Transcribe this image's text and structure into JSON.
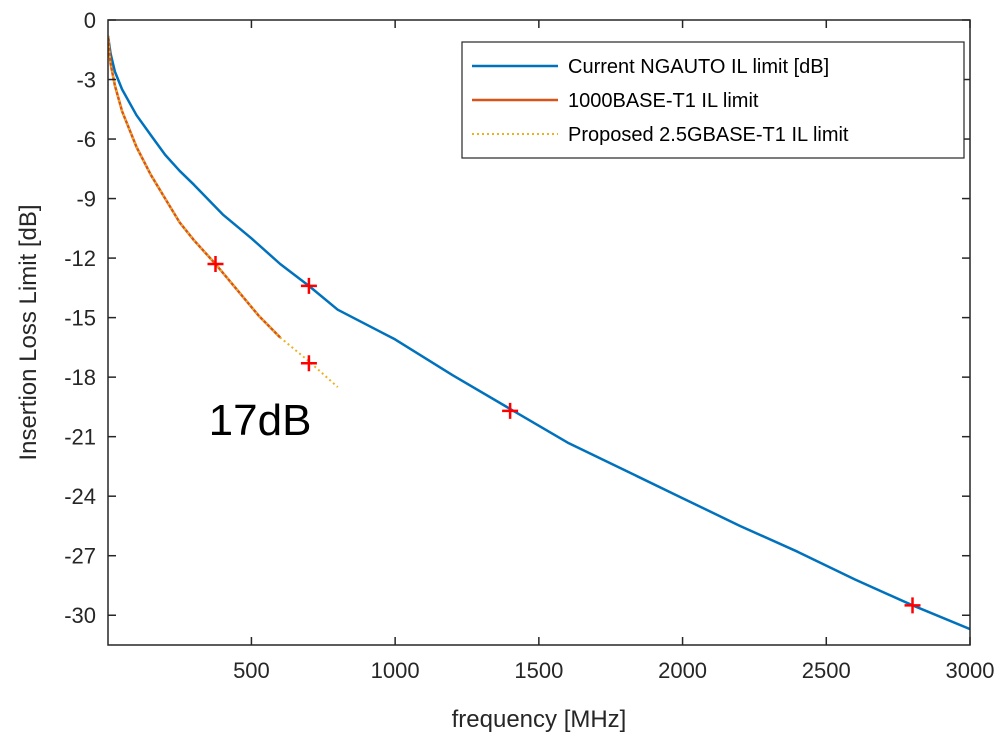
{
  "chart_data": {
    "type": "line",
    "xlabel": "frequency [MHz]",
    "ylabel": "Insertion Loss Limit [dB]",
    "xlim": [
      1,
      3000
    ],
    "ylim": [
      -31.5,
      0
    ],
    "x_ticks": [
      500,
      1000,
      1500,
      2000,
      2500,
      3000
    ],
    "y_ticks": [
      0,
      -3,
      -6,
      -9,
      -12,
      -15,
      -18,
      -21,
      -24,
      -27,
      -30
    ],
    "grid": false,
    "legend_position": "top-right",
    "series": [
      {
        "name": "Current NGAUTO IL limit [dB]",
        "color": "#0072BD",
        "style": "solid",
        "x": [
          1,
          10,
          25,
          50,
          100,
          150,
          200,
          250,
          300,
          400,
          500,
          600,
          700,
          800,
          1000,
          1200,
          1400,
          1600,
          1800,
          2000,
          2200,
          2400,
          2600,
          2800,
          3000
        ],
        "y": [
          -0.8,
          -1.7,
          -2.6,
          -3.5,
          -4.8,
          -5.8,
          -6.8,
          -7.6,
          -8.3,
          -9.8,
          -11.0,
          -12.3,
          -13.4,
          -14.6,
          -16.1,
          -17.9,
          -19.6,
          -21.3,
          -22.7,
          -24.1,
          -25.5,
          -26.8,
          -28.2,
          -29.5,
          -30.7
        ]
      },
      {
        "name": "1000BASE-T1 IL limit",
        "color": "#D95319",
        "style": "solid",
        "x": [
          1,
          10,
          25,
          50,
          100,
          150,
          200,
          250,
          300,
          375,
          450,
          525,
          600
        ],
        "y": [
          -0.8,
          -2.2,
          -3.3,
          -4.6,
          -6.4,
          -7.8,
          -9.0,
          -10.2,
          -11.1,
          -12.3,
          -13.6,
          -14.9,
          -16.0
        ]
      },
      {
        "name": "Proposed 2.5GBASE-T1 IL limit",
        "color": "#EDB120",
        "style": "dotted",
        "x": [
          1,
          10,
          25,
          50,
          100,
          150,
          200,
          250,
          300,
          375,
          450,
          525,
          600,
          700,
          800
        ],
        "y": [
          -0.8,
          -2.2,
          -3.3,
          -4.6,
          -6.4,
          -7.8,
          -9.0,
          -10.2,
          -11.1,
          -12.3,
          -13.6,
          -14.9,
          -16.0,
          -17.2,
          -18.5
        ]
      }
    ],
    "markers": {
      "color": "#FF0000",
      "symbol": "+",
      "points": [
        {
          "x": 375,
          "y": -12.3
        },
        {
          "x": 700,
          "y": -13.4
        },
        {
          "x": 700,
          "y": -17.3
        },
        {
          "x": 1400,
          "y": -19.7
        },
        {
          "x": 2800,
          "y": -29.5
        }
      ]
    },
    "annotations": [
      {
        "text": "17dB",
        "x": 530,
        "y": -19.7
      }
    ]
  }
}
